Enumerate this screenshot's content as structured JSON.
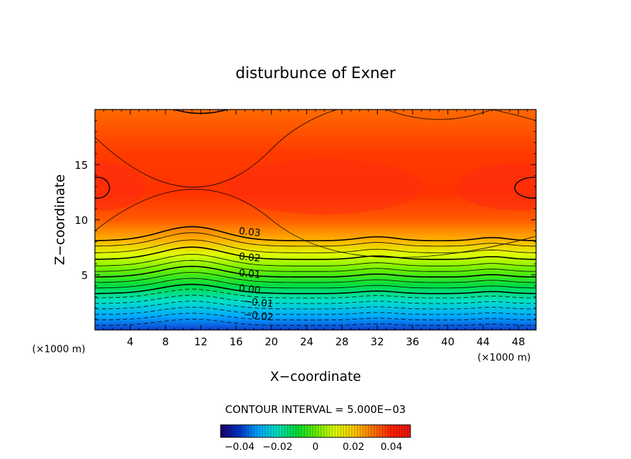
{
  "chart_data": {
    "type": "heatmap",
    "title": "disturbunce of Exner",
    "xlabel": "X−coordinate",
    "ylabel": "Z−coordinate",
    "x_unit_left": "(×1000 m)",
    "x_unit_right": "(×1000 m)",
    "xlim": [
      0,
      50
    ],
    "ylim": [
      0,
      20
    ],
    "x_ticks": [
      4,
      8,
      12,
      16,
      20,
      24,
      28,
      32,
      36,
      40,
      44,
      48
    ],
    "y_ticks": [
      5,
      10,
      15
    ],
    "contour_interval_text": "CONTOUR INTERVAL = 5.000E−03",
    "contour_interval": 0.005,
    "contour_labels": [
      {
        "text": "0.03",
        "value": 0.03,
        "x": 17.5,
        "y": 8.6
      },
      {
        "text": "0.02",
        "value": 0.02,
        "x": 17.5,
        "y": 6.3
      },
      {
        "text": "0.01",
        "value": 0.01,
        "x": 17.5,
        "y": 4.8
      },
      {
        "text": "0.00",
        "value": 0.0,
        "x": 17.5,
        "y": 3.4
      },
      {
        "text": "−0.01",
        "value": -0.01,
        "x": 18.5,
        "y": 2.2
      },
      {
        "text": "−0.02",
        "value": -0.02,
        "x": 18.5,
        "y": 1.0
      }
    ],
    "colorbar": {
      "min": -0.05,
      "max": 0.05,
      "tick_labels": [
        "−0.04",
        "−0.02",
        "0",
        "0.02",
        "0.04"
      ],
      "tick_values": [
        -0.04,
        -0.02,
        0,
        0.02,
        0.04
      ]
    },
    "colormap": [
      "#1a0066",
      "#0033cc",
      "#00aaff",
      "#00e0c0",
      "#00dd33",
      "#66ee00",
      "#ddff00",
      "#ffcc00",
      "#ff7700",
      "#ff2200",
      "#ee1111"
    ]
  }
}
